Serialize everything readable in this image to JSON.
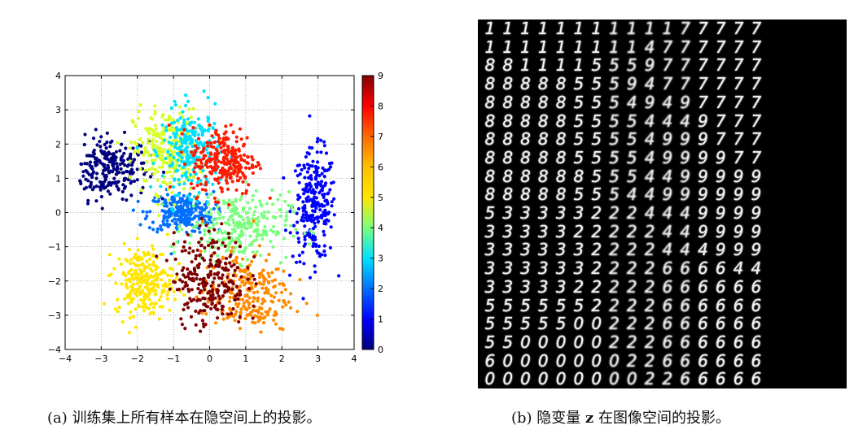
{
  "figure_a": {
    "caption": "(a) 训练集上所有样本在隐空间上的投影。",
    "chart_data": {
      "type": "scatter",
      "xlim": [
        -4,
        4
      ],
      "ylim": [
        -4,
        4
      ],
      "xticks": [
        "−4",
        "−3",
        "−2",
        "−1",
        "0",
        "1",
        "2",
        "3",
        "4"
      ],
      "yticks": [
        "4",
        "3",
        "2",
        "1",
        "0",
        "−1",
        "−2",
        "−3",
        "−4"
      ],
      "grid": true,
      "colorbar": {
        "range": [
          0,
          9
        ],
        "ticks": [
          "0",
          "1",
          "2",
          "3",
          "4",
          "5",
          "6",
          "7",
          "8",
          "9"
        ],
        "colors": [
          "#00007f",
          "#0000ff",
          "#0070ff",
          "#00e0ff",
          "#7aff7e",
          "#ffe600",
          "#ffbf00",
          "#ff6a00",
          "#ff0000",
          "#7f0000"
        ]
      },
      "clusters": [
        {
          "label": 0,
          "center": [
            -2.8,
            1.3
          ],
          "spread": [
            0.55,
            0.45
          ],
          "color": "#00007f"
        },
        {
          "label": 1,
          "center": [
            2.9,
            0.2
          ],
          "spread": [
            0.3,
            0.8
          ],
          "color": "#0000ff"
        },
        {
          "label": 2,
          "center": [
            -0.8,
            0.0
          ],
          "spread": [
            0.45,
            0.3
          ],
          "color": "#0070ff"
        },
        {
          "label": 3,
          "center": [
            -0.5,
            1.8
          ],
          "spread": [
            0.4,
            0.6
          ],
          "color": "#00e0ff"
        },
        {
          "label": 4,
          "center": [
            0.8,
            -0.4
          ],
          "spread": [
            0.7,
            0.5
          ],
          "color": "#7aff7e"
        },
        {
          "label": 5,
          "center": [
            -1.2,
            1.8
          ],
          "spread": [
            0.45,
            0.6
          ],
          "color": "#d6ff25"
        },
        {
          "label": 6,
          "center": [
            -1.8,
            -2.0
          ],
          "spread": [
            0.4,
            0.5
          ],
          "color": "#ffe600"
        },
        {
          "label": 7,
          "center": [
            1.0,
            -2.4
          ],
          "spread": [
            0.6,
            0.6
          ],
          "color": "#ff8a00"
        },
        {
          "label": 8,
          "center": [
            0.4,
            1.5
          ],
          "spread": [
            0.45,
            0.5
          ],
          "color": "#ff1a00"
        },
        {
          "label": 9,
          "center": [
            0.0,
            -1.9
          ],
          "spread": [
            0.5,
            0.7
          ],
          "color": "#7f0000"
        }
      ]
    }
  },
  "figure_b": {
    "caption_prefix": "(b) 隐变量",
    "caption_var": "z",
    "caption_suffix": "在图像空间的投影。",
    "grid_rows": [
      "1111111111177777",
      "1111111114777777",
      "8811115559777777",
      "8888855594777777",
      "8888855549497777",
      "8888855554449777",
      "8888855554999777",
      "8888855554999977",
      "8888885554499999",
      "8888855544999999",
      "5333332224449999",
      "3333322222449999",
      "3333332222444999",
      "3333332222666644",
      "3333322222666666",
      "5555552222666666",
      "5555500222666666",
      "5500000222666666",
      "6000000022666666",
      "0000000002266666"
    ]
  }
}
